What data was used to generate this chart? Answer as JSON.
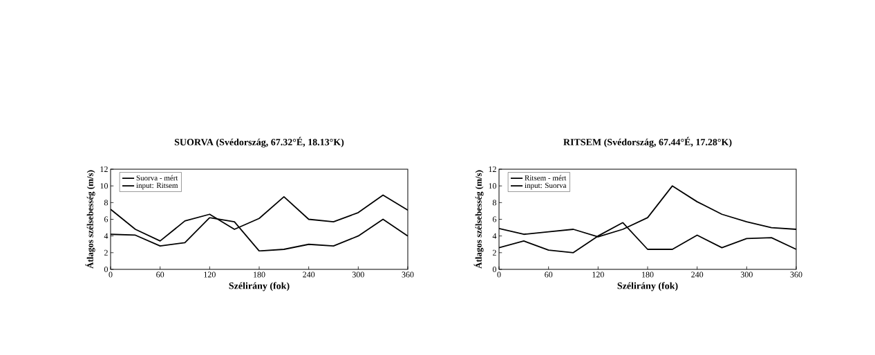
{
  "chart_data": [
    {
      "type": "line",
      "title": "SUORVA (Svédország, 67.32°É, 18.13°K)",
      "xlabel": "Szélirány (fok)",
      "ylabel": "Átlagos szélsebesség (m/s)",
      "x": [
        0,
        30,
        60,
        90,
        120,
        150,
        180,
        210,
        240,
        270,
        300,
        330,
        360
      ],
      "xlim": [
        0,
        360
      ],
      "ylim": [
        0,
        12
      ],
      "xticks": [
        0,
        60,
        120,
        180,
        240,
        300,
        360
      ],
      "yticks": [
        0,
        2,
        4,
        6,
        8,
        10,
        12
      ],
      "legend": "top left",
      "series": [
        {
          "name": "Suorva - mért",
          "color": "#000000",
          "values": [
            7.2,
            4.8,
            3.4,
            5.8,
            6.6,
            4.8,
            6.1,
            8.7,
            6.0,
            5.7,
            6.8,
            8.9,
            7.1
          ]
        },
        {
          "name": "input: Ritsem",
          "color": "#000000",
          "values": [
            4.2,
            4.1,
            2.8,
            3.2,
            6.2,
            5.7,
            2.2,
            2.4,
            3.0,
            2.8,
            4.0,
            6.0,
            4.0
          ]
        }
      ]
    },
    {
      "type": "line",
      "title": "RITSEM (Svédország, 67.44°É, 17.28°K)",
      "xlabel": "Szélirány (fok)",
      "ylabel": "Átlagos szélsebesség (m/s)",
      "x": [
        0,
        30,
        60,
        90,
        120,
        150,
        180,
        210,
        240,
        270,
        300,
        330,
        360
      ],
      "xlim": [
        0,
        360
      ],
      "ylim": [
        0,
        12
      ],
      "xticks": [
        0,
        60,
        120,
        180,
        240,
        300,
        360
      ],
      "yticks": [
        0,
        2,
        4,
        6,
        8,
        10,
        12
      ],
      "legend": "top left",
      "series": [
        {
          "name": "Ritsem - mért",
          "color": "#000000",
          "values": [
            4.9,
            4.2,
            4.5,
            4.8,
            3.9,
            4.8,
            6.2,
            10.0,
            8.1,
            6.6,
            5.7,
            5.0,
            4.8
          ]
        },
        {
          "name": "input: Suorva",
          "color": "#000000",
          "values": [
            2.6,
            3.4,
            2.3,
            2.0,
            4.0,
            5.6,
            2.4,
            2.4,
            4.1,
            2.6,
            3.7,
            3.8,
            2.4
          ]
        }
      ]
    }
  ]
}
